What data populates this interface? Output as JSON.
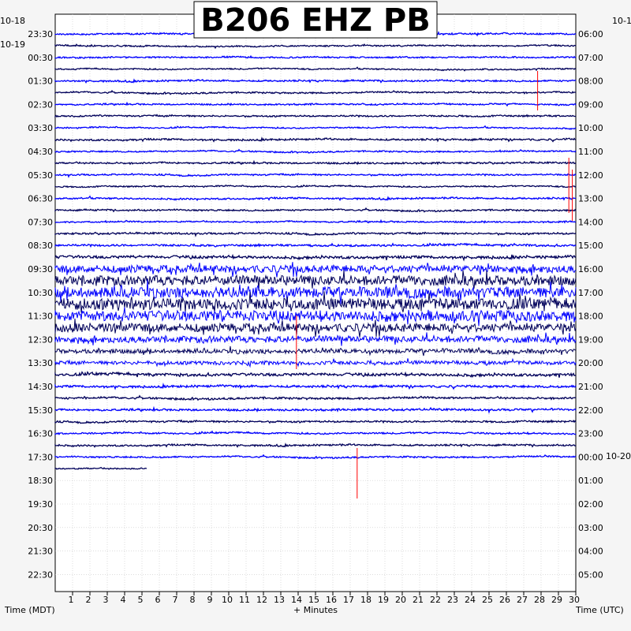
{
  "chart_data": {
    "type": "line",
    "title": "B206 EHZ PB",
    "xlabel": "+ Minutes",
    "y_left_label": "Time (MDT)",
    "y_right_label": "Time (UTC)",
    "x_ticks": [
      "1",
      "2",
      "3",
      "4",
      "5",
      "6",
      "7",
      "8",
      "9",
      "10",
      "11",
      "12",
      "13",
      "14",
      "15",
      "16",
      "17",
      "18",
      "19",
      "20",
      "21",
      "22",
      "23",
      "24",
      "25",
      "26",
      "27",
      "28",
      "29",
      "30"
    ],
    "xlim": [
      0,
      30
    ],
    "grid": true,
    "date_labels_left": [
      "10-18",
      "10-19"
    ],
    "date_labels_right": [
      "10-1",
      "10-20"
    ],
    "left_ticks": [
      "23:30",
      "00:30",
      "01:30",
      "02:30",
      "03:30",
      "04:30",
      "05:30",
      "06:30",
      "07:30",
      "08:30",
      "09:30",
      "10:30",
      "11:30",
      "12:30",
      "13:30",
      "14:30",
      "15:30",
      "16:30",
      "17:30",
      "18:30",
      "19:30",
      "20:30",
      "21:30",
      "22:30"
    ],
    "right_ticks": [
      "06:00",
      "07:00",
      "08:00",
      "09:00",
      "10:00",
      "11:00",
      "12:00",
      "13:00",
      "14:00",
      "15:00",
      "16:00",
      "17:00",
      "18:00",
      "19:00",
      "20:00",
      "21:00",
      "22:00",
      "23:00",
      "00:00",
      "01:00",
      "02:00",
      "03:00",
      "04:00",
      "05:00"
    ],
    "trace_rows": 38,
    "last_row_end_minute": 5.3,
    "trace_colors": [
      "#0000ff",
      "#00005a"
    ],
    "noise_levels": [
      1.5,
      1.2,
      1.3,
      1.2,
      1.5,
      1.4,
      1.3,
      1.4,
      1.2,
      1.6,
      1.3,
      1.5,
      1.4,
      1.2,
      1.5,
      1.4,
      1.3,
      1.6,
      1.8,
      2.5,
      7,
      9,
      10,
      11,
      10,
      8,
      6,
      4,
      3.5,
      2.5,
      2,
      1.8,
      1.8,
      1.6,
      1.5,
      1.5,
      1.4,
      1.2
    ],
    "event_colors": {
      "pick": "#ff0000"
    }
  }
}
